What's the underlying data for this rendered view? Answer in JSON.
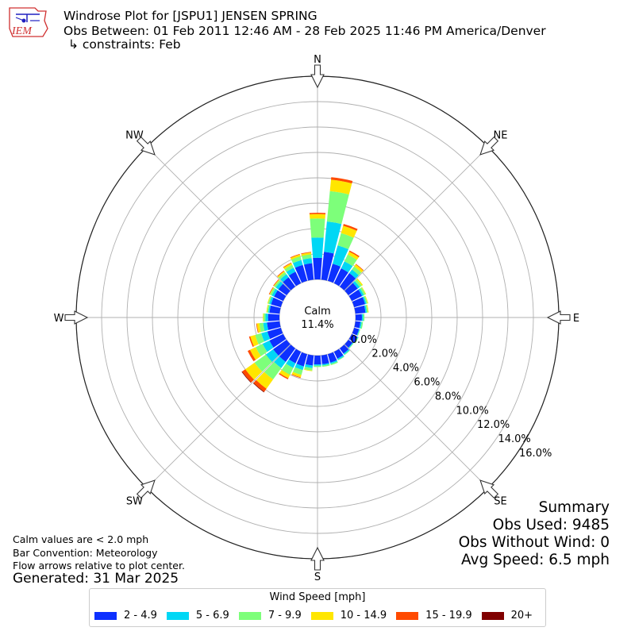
{
  "header": {
    "title": "Windrose Plot for [JSPU1] JENSEN SPRING",
    "obs_between": "Obs Between: 01 Feb 2011 12:46 AM - 28 Feb 2025 11:46 PM America/Denver",
    "constraints": "↳ constraints: Feb"
  },
  "logo": {
    "text": "IEM"
  },
  "notes": {
    "calm_note": "Calm values are < 2.0 mph",
    "bar_convention": "Bar Convention: Meteorology",
    "flow_arrows": "Flow arrows relative to plot center.",
    "generated": "Generated: 31 Mar 2025"
  },
  "summary": {
    "heading": "Summary",
    "obs_used": "Obs Used: 9485",
    "obs_without_wind": "Obs Without Wind: 0",
    "avg_speed": "Avg Speed: 6.5 mph"
  },
  "colors": {
    "bins": [
      "#0d30ff",
      "#00d7f5",
      "#7dff7a",
      "#ffe600",
      "#ff4a00",
      "#800000"
    ],
    "grid": "#b0b0b0",
    "frame": "#222222"
  },
  "chart_data": {
    "type": "windrose",
    "calm": {
      "label": "Calm",
      "value_text": "11.4%",
      "percent": 11.4
    },
    "directions": [
      "N",
      "NE",
      "E",
      "SE",
      "S",
      "SW",
      "W",
      "NW"
    ],
    "radial_ticks": [
      "0.0%",
      "2.0%",
      "4.0%",
      "6.0%",
      "8.0%",
      "10.0%",
      "12.0%",
      "14.0%",
      "16.0%"
    ],
    "rmax": 16,
    "legend": {
      "title": "Wind Speed [mph]",
      "bins": [
        "2 - 4.9",
        "5 - 6.9",
        "7 - 9.9",
        "10 - 14.9",
        "15 - 19.9",
        "20+"
      ]
    },
    "sectors": [
      {
        "dir": 0,
        "values": [
          1.7,
          1.6,
          1.5,
          0.35,
          0.1,
          0.0
        ]
      },
      {
        "dir": 10,
        "values": [
          2.2,
          2.4,
          2.4,
          0.9,
          0.2,
          0.0
        ]
      },
      {
        "dir": 20,
        "values": [
          1.4,
          1.5,
          1.0,
          0.6,
          0.15,
          0.0
        ]
      },
      {
        "dir": 30,
        "values": [
          1.3,
          0.6,
          0.6,
          0.25,
          0.1,
          0.0
        ]
      },
      {
        "dir": 40,
        "values": [
          1.3,
          0.35,
          0.3,
          0.2,
          0.05,
          0.0
        ]
      },
      {
        "dir": 50,
        "values": [
          0.9,
          0.2,
          0.2,
          0.1,
          0.0,
          0.0
        ]
      },
      {
        "dir": 60,
        "values": [
          0.9,
          0.15,
          0.15,
          0.05,
          0.0,
          0.0
        ]
      },
      {
        "dir": 70,
        "values": [
          0.9,
          0.1,
          0.1,
          0.05,
          0.0,
          0.0
        ]
      },
      {
        "dir": 80,
        "values": [
          0.8,
          0.1,
          0.1,
          0.05,
          0.0,
          0.0
        ]
      },
      {
        "dir": 90,
        "values": [
          0.5,
          0.1,
          0.1,
          0.0,
          0.0,
          0.0
        ]
      },
      {
        "dir": 100,
        "values": [
          0.4,
          0.1,
          0.1,
          0.0,
          0.0,
          0.0
        ]
      },
      {
        "dir": 110,
        "values": [
          0.4,
          0.05,
          0.05,
          0.0,
          0.0,
          0.0
        ]
      },
      {
        "dir": 120,
        "values": [
          0.5,
          0.05,
          0.05,
          0.0,
          0.0,
          0.0
        ]
      },
      {
        "dir": 130,
        "values": [
          0.4,
          0.05,
          0.05,
          0.0,
          0.0,
          0.0
        ]
      },
      {
        "dir": 140,
        "values": [
          0.5,
          0.1,
          0.05,
          0.0,
          0.0,
          0.0
        ]
      },
      {
        "dir": 150,
        "values": [
          0.6,
          0.1,
          0.05,
          0.0,
          0.0,
          0.0
        ]
      },
      {
        "dir": 160,
        "values": [
          0.7,
          0.1,
          0.1,
          0.0,
          0.0,
          0.0
        ]
      },
      {
        "dir": 170,
        "values": [
          0.7,
          0.1,
          0.1,
          0.0,
          0.0,
          0.0
        ]
      },
      {
        "dir": 180,
        "values": [
          0.7,
          0.1,
          0.1,
          0.0,
          0.0,
          0.0
        ]
      },
      {
        "dir": 190,
        "values": [
          0.8,
          0.2,
          0.2,
          0.05,
          0.0,
          0.0
        ]
      },
      {
        "dir": 200,
        "values": [
          1.0,
          0.3,
          0.4,
          0.2,
          0.05,
          0.0
        ]
      },
      {
        "dir": 210,
        "values": [
          1.0,
          0.4,
          0.6,
          0.3,
          0.1,
          0.0
        ]
      },
      {
        "dir": 220,
        "values": [
          1.3,
          0.6,
          1.1,
          0.9,
          0.3,
          0.05
        ]
      },
      {
        "dir": 230,
        "values": [
          1.3,
          0.7,
          1.1,
          0.9,
          0.3,
          0.05
        ]
      },
      {
        "dir": 240,
        "values": [
          1.2,
          0.6,
          0.6,
          0.5,
          0.2,
          0.0
        ]
      },
      {
        "dir": 250,
        "values": [
          1.1,
          0.5,
          0.5,
          0.4,
          0.1,
          0.0
        ]
      },
      {
        "dir": 260,
        "values": [
          1.0,
          0.3,
          0.3,
          0.2,
          0.05,
          0.0
        ]
      },
      {
        "dir": 270,
        "values": [
          0.9,
          0.2,
          0.15,
          0.05,
          0.0,
          0.0
        ]
      },
      {
        "dir": 280,
        "values": [
          0.8,
          0.1,
          0.1,
          0.05,
          0.0,
          0.0
        ]
      },
      {
        "dir": 290,
        "values": [
          0.8,
          0.15,
          0.1,
          0.05,
          0.0,
          0.0
        ]
      },
      {
        "dir": 300,
        "values": [
          0.8,
          0.2,
          0.15,
          0.05,
          0.05,
          0.0
        ]
      },
      {
        "dir": 310,
        "values": [
          0.8,
          0.25,
          0.15,
          0.05,
          0.05,
          0.0
        ]
      },
      {
        "dir": 320,
        "values": [
          0.9,
          0.3,
          0.2,
          0.1,
          0.05,
          0.0
        ]
      },
      {
        "dir": 330,
        "values": [
          1.0,
          0.35,
          0.25,
          0.15,
          0.05,
          0.0
        ]
      },
      {
        "dir": 340,
        "values": [
          1.3,
          0.4,
          0.3,
          0.15,
          0.05,
          0.0
        ]
      },
      {
        "dir": 350,
        "values": [
          1.3,
          0.4,
          0.3,
          0.15,
          0.05,
          0.0
        ]
      }
    ]
  }
}
